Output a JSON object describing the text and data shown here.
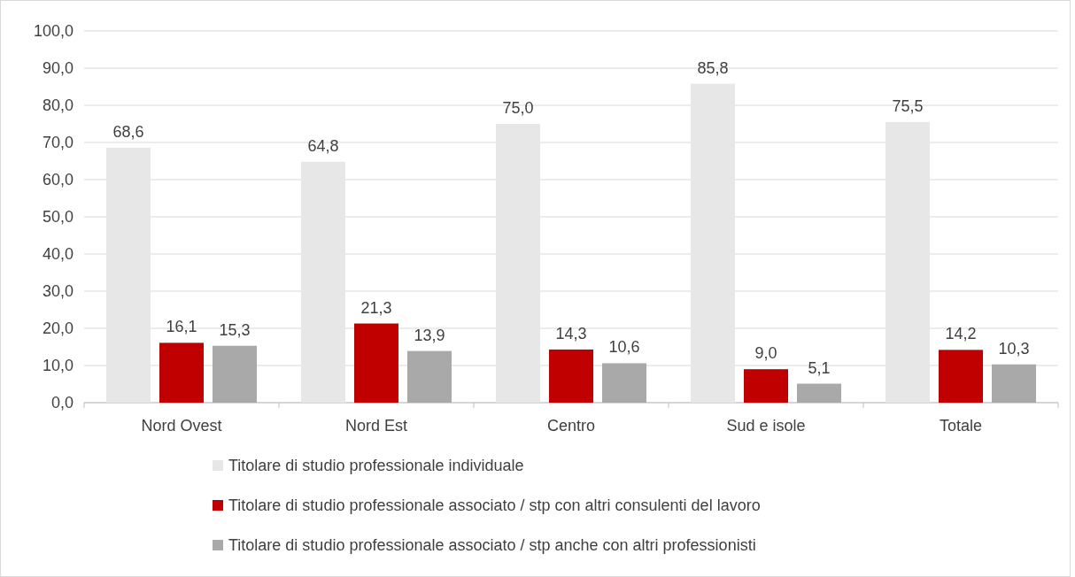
{
  "chart_data": {
    "type": "bar",
    "categories": [
      "Nord Ovest",
      "Nord Est",
      "Centro",
      "Sud e isole",
      "Totale"
    ],
    "series": [
      {
        "name": "Titolare di studio professionale individuale",
        "color": "#e7e7e7",
        "values": [
          68.6,
          64.8,
          75.0,
          85.8,
          75.5
        ],
        "value_labels": [
          "68,6",
          "64,8",
          "75,0",
          "85,8",
          "75,5"
        ]
      },
      {
        "name": "Titolare di studio professionale associato / stp con altri consulenti del lavoro",
        "color": "#c00000",
        "values": [
          16.1,
          21.3,
          14.3,
          9.0,
          14.2
        ],
        "value_labels": [
          "16,1",
          "21,3",
          "14,3",
          "9,0",
          "14,2"
        ]
      },
      {
        "name": "Titolare di studio professionale associato / stp anche con altri professionisti",
        "color": "#a9a9a9",
        "values": [
          15.3,
          13.9,
          10.6,
          5.1,
          10.3
        ],
        "value_labels": [
          "15,3",
          "13,9",
          "10,6",
          "5,1",
          "10,3"
        ]
      }
    ],
    "ylim": [
      0,
      100
    ],
    "yticks": [
      {
        "value": 0,
        "label": "0,0"
      },
      {
        "value": 10,
        "label": "10,0"
      },
      {
        "value": 20,
        "label": "20,0"
      },
      {
        "value": 30,
        "label": "30,0"
      },
      {
        "value": 40,
        "label": "40,0"
      },
      {
        "value": 50,
        "label": "50,0"
      },
      {
        "value": 60,
        "label": "60,0"
      },
      {
        "value": 70,
        "label": "70,0"
      },
      {
        "value": 80,
        "label": "80,0"
      },
      {
        "value": 90,
        "label": "90,0"
      },
      {
        "value": 100,
        "label": "100,0"
      }
    ],
    "grid": "y",
    "legend": "bottom"
  }
}
